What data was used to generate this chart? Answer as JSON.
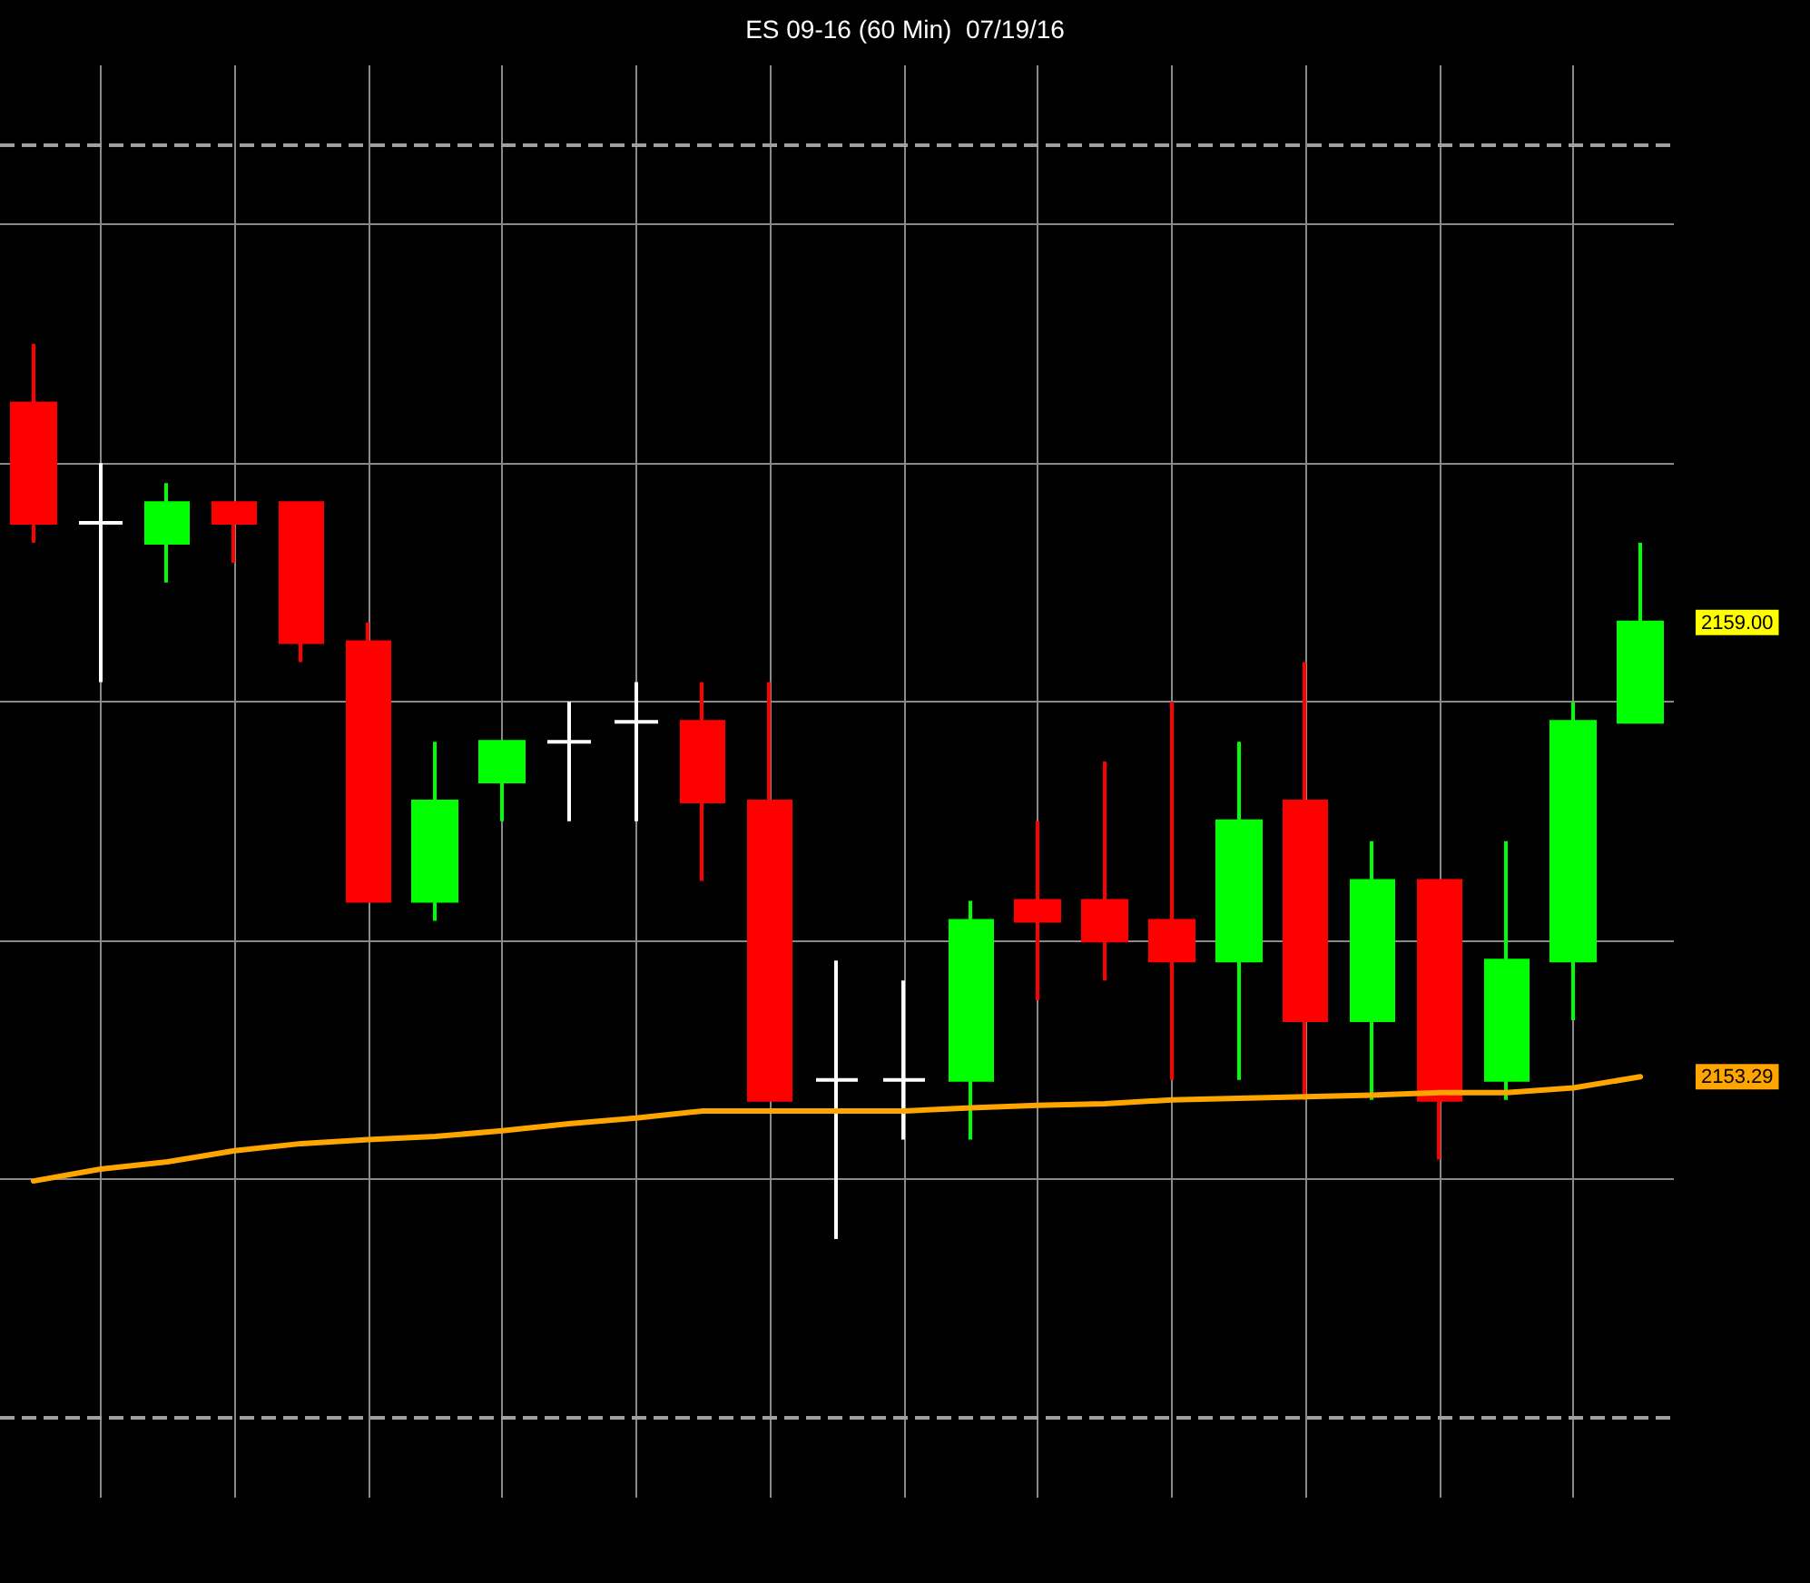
{
  "chart_data": {
    "type": "candlestick",
    "title": "ES 09-16 (60 Min)  07/19/16",
    "categories": [
      null,
      null,
      null,
      null,
      null,
      null,
      null,
      null,
      null,
      null,
      null,
      null,
      null,
      null,
      null,
      null,
      null,
      null,
      null,
      null,
      null,
      null,
      null,
      null,
      null
    ],
    "series": [
      {
        "colors": [
          "#ff0000",
          "#ffffff",
          "#00ff00",
          "#ff0000",
          "#ff0000",
          "#ff0000",
          "#00ff00",
          "#00ff00",
          "#ffffff",
          "#ffffff",
          "#ff0000",
          "#ff0000",
          "#ffffff",
          "#ffffff",
          "#00ff00",
          "#ff0000",
          "#ff0000",
          "#ff0000",
          "#00ff00",
          "#ff0000",
          "#00ff00",
          "#ff0000",
          "#00ff00",
          "#00ff00",
          "#00ff00"
        ],
        "ohlc": [
          [
            2161.75,
            2162.5,
            2160.0,
            2160.25
          ],
          [
            2160.25,
            2161.0,
            2158.25,
            2160.25
          ],
          [
            2160.0,
            2160.75,
            2159.5,
            2160.5
          ],
          [
            2160.5,
            2160.5,
            2159.75,
            2160.25
          ],
          [
            2160.5,
            2160.5,
            2158.5,
            2158.75
          ],
          [
            2158.75,
            2159.0,
            2155.5,
            2155.5
          ],
          [
            2155.5,
            2157.5,
            2155.25,
            2156.75
          ],
          [
            2157.0,
            2157.5,
            2156.5,
            2157.5
          ],
          [
            2157.5,
            2158.0,
            2156.5,
            2157.5
          ],
          [
            2157.75,
            2158.25,
            2156.5,
            2157.75
          ],
          [
            2157.75,
            2158.25,
            2155.75,
            2156.75
          ],
          [
            2156.75,
            2158.25,
            2153.0,
            2153.0
          ],
          [
            2153.25,
            2154.75,
            2151.25,
            2153.25
          ],
          [
            2153.25,
            2154.5,
            2152.5,
            2153.25
          ],
          [
            2153.25,
            2155.5,
            2152.5,
            2155.25
          ],
          [
            2155.5,
            2156.5,
            2154.25,
            2155.25
          ],
          [
            2155.5,
            2157.25,
            2154.5,
            2155.0
          ],
          [
            2155.25,
            2158.0,
            2153.25,
            2154.75
          ],
          [
            2154.75,
            2157.5,
            2153.25,
            2156.5
          ],
          [
            2156.75,
            2158.5,
            2153.0,
            2154.0
          ],
          [
            2154.0,
            2156.25,
            2153.0,
            2155.75
          ],
          [
            2155.75,
            2155.75,
            2152.25,
            2153.0
          ],
          [
            2153.25,
            2156.25,
            2153.0,
            2154.75
          ],
          [
            2154.75,
            2158.0,
            2154.0,
            2157.75
          ],
          [
            2157.75,
            2160.0,
            2157.75,
            2159.0
          ]
        ]
      },
      {
        "type": "line",
        "color": "#ffa500",
        "values": [
          2151.98,
          2152.13,
          2152.22,
          2152.36,
          2152.45,
          2152.5,
          2152.54,
          2152.61,
          2152.7,
          2152.77,
          2152.86,
          2152.86,
          2152.86,
          2152.86,
          2152.9,
          2152.93,
          2152.95,
          2153.0,
          2153.02,
          2153.04,
          2153.06,
          2153.09,
          2153.09,
          2153.15,
          2153.29
        ]
      }
    ],
    "ylim": [
      2148,
      2166
    ],
    "yticks": [
      {
        "value": 2152,
        "label": null
      },
      {
        "value": 2153.29,
        "label": "2153.29"
      },
      {
        "value": 2155,
        "label": null
      },
      {
        "value": 2158,
        "label": null
      },
      {
        "value": 2159,
        "label": "2159.00"
      },
      {
        "value": 2161,
        "label": null
      },
      {
        "value": 2164,
        "label": null
      }
    ],
    "ref_lines": [
      {
        "axis": "y",
        "value": 2165,
        "color": "#a0a0a0",
        "line_style": "dashed"
      },
      {
        "axis": "y",
        "value": 2149,
        "color": "#a0a0a0",
        "line_style": "dashed"
      }
    ],
    "grid": true,
    "tick_labels": "y",
    "line_style": "solid"
  }
}
